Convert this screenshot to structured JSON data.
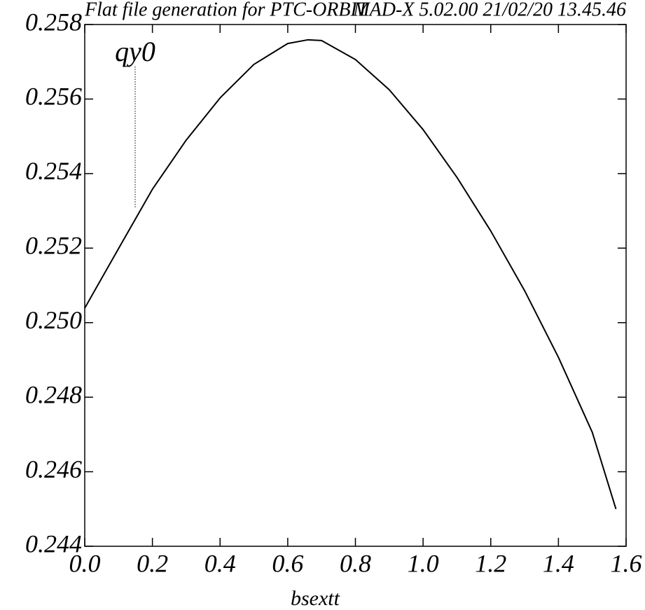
{
  "chart_data": {
    "type": "line",
    "title": "Flat file generation for PTC-ORBIT",
    "subtitle": "MAD-X 5.02.00 21/02/20 13.45.46",
    "x_label": "bsextt",
    "x": [
      0,
      0.1,
      0.2,
      0.3,
      0.4,
      0.5,
      0.6,
      0.66,
      0.7,
      0.8,
      0.9,
      1.0,
      1.1,
      1.2,
      1.3,
      1.4,
      1.5,
      1.57
    ],
    "series": [
      {
        "name": "qy0",
        "color": "#000000",
        "values": [
          0.25039,
          0.25199,
          0.25358,
          0.2549,
          0.25603,
          0.25693,
          0.25749,
          0.25759,
          0.25757,
          0.25706,
          0.25625,
          0.25518,
          0.2539,
          0.25246,
          0.25086,
          0.24907,
          0.24706,
          0.245
        ]
      }
    ],
    "xlim": [
      0,
      1.6
    ],
    "ylim": [
      0.244,
      0.258
    ],
    "xticks": [
      {
        "value": 0,
        "label": "0.0"
      },
      0.2,
      0.4,
      0.6,
      0.8,
      {
        "value": 1,
        "label": "1.0"
      },
      1.2,
      1.4,
      1.6
    ],
    "yticks": [
      0.244,
      0.246,
      0.248,
      {
        "value": 0.25,
        "label": "0.250"
      },
      0.252,
      0.254,
      0.256,
      0.258
    ],
    "grid": false
  }
}
